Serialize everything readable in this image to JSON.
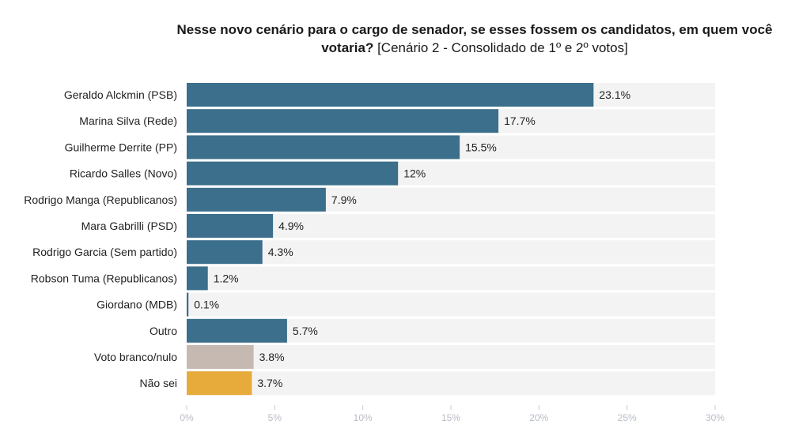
{
  "chart_data": {
    "type": "bar",
    "orientation": "horizontal",
    "title": "Nesse novo cenário para o cargo de senador, se esses fossem os candidatos, em quem você votaria?",
    "subtitle": "[Cenário 2 - Consolidado de 1º e 2º votos]",
    "xlabel": "",
    "ylabel": "",
    "xlim": [
      0,
      30
    ],
    "xticks": [
      0,
      5,
      10,
      15,
      20,
      25,
      30
    ],
    "xtick_labels": [
      "0%",
      "5%",
      "10%",
      "15%",
      "20%",
      "25%",
      "30%"
    ],
    "grid": false,
    "categories": [
      "Geraldo Alckmin (PSB)",
      "Marina Silva (Rede)",
      "Guilherme Derrite (PP)",
      "Ricardo Salles (Novo)",
      "Rodrigo Manga (Republicanos)",
      "Mara Gabrilli (PSD)",
      "Rodrigo Garcia (Sem partido)",
      "Robson Tuma (Republicanos)",
      "Giordano (MDB)",
      "Outro",
      "Voto branco/nulo",
      "Não sei"
    ],
    "values": [
      23.1,
      17.7,
      15.5,
      12,
      7.9,
      4.9,
      4.3,
      1.2,
      0.1,
      5.7,
      3.8,
      3.7
    ],
    "value_labels": [
      "23.1%",
      "17.7%",
      "15.5%",
      "12%",
      "7.9%",
      "4.9%",
      "4.3%",
      "1.2%",
      "0.1%",
      "5.7%",
      "3.8%",
      "3.7%"
    ],
    "colors": [
      "#3b6f8b",
      "#3b6f8b",
      "#3b6f8b",
      "#3b6f8b",
      "#3b6f8b",
      "#3b6f8b",
      "#3b6f8b",
      "#3b6f8b",
      "#3b6f8b",
      "#3b6f8b",
      "#c5b9b2",
      "#e7ab3c"
    ],
    "track_color": "#f3f3f3"
  }
}
